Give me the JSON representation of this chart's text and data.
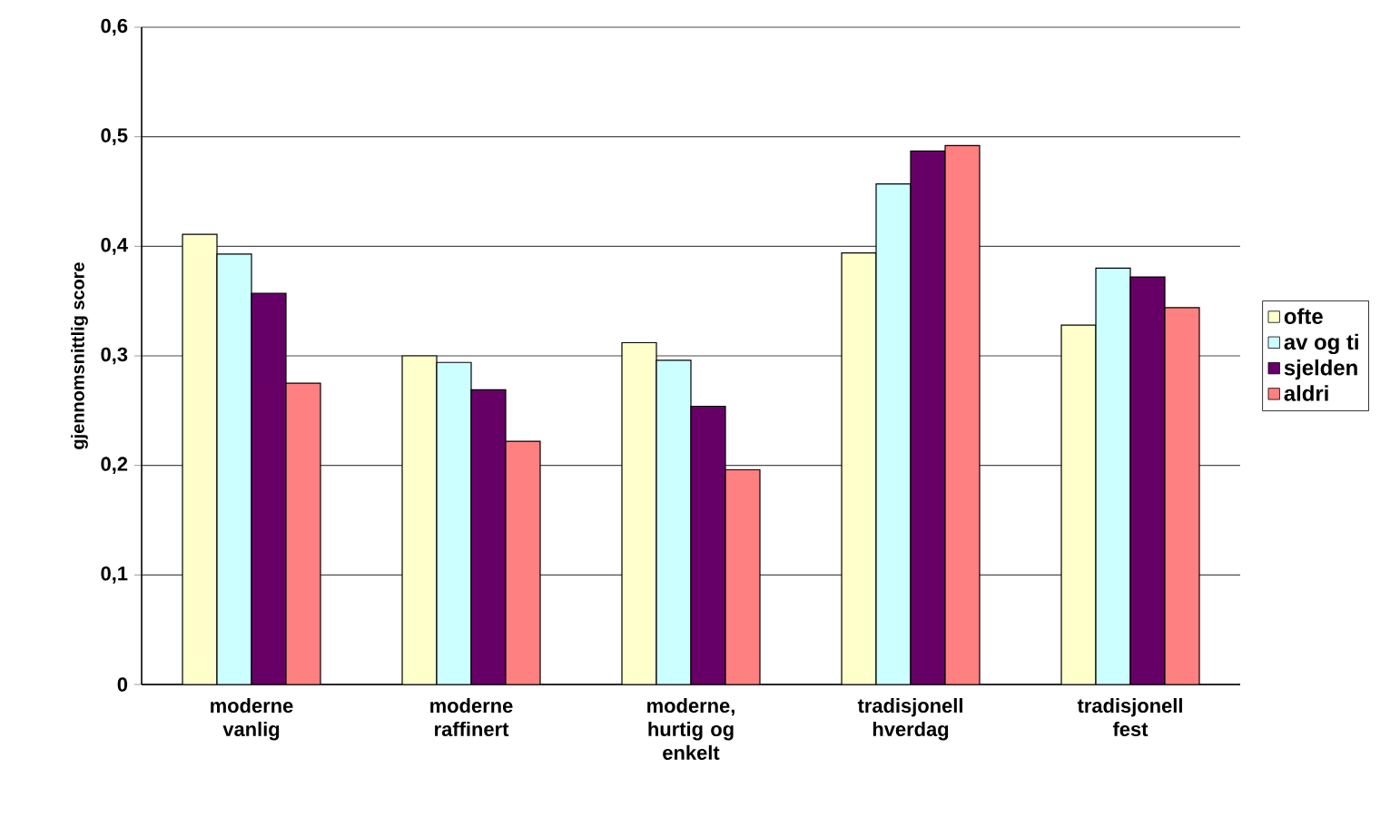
{
  "chart_data": {
    "type": "bar",
    "ylabel": "gjennomsnittlig score",
    "categories": [
      "moderne vanlig",
      "moderne raffinert",
      "moderne, hurtig og enkelt",
      "tradisjonell hverdag",
      "tradisjonell fest"
    ],
    "series": [
      {
        "name": "ofte",
        "color": "#ffffcc",
        "values": [
          0.411,
          0.3,
          0.312,
          0.394,
          0.328
        ]
      },
      {
        "name": "av og ti",
        "color": "#ccffff",
        "values": [
          0.393,
          0.294,
          0.296,
          0.457,
          0.38
        ]
      },
      {
        "name": "sjelden",
        "color": "#660066",
        "values": [
          0.357,
          0.269,
          0.254,
          0.487,
          0.372
        ]
      },
      {
        "name": "aldri",
        "color": "#ff8080",
        "values": [
          0.275,
          0.222,
          0.196,
          0.492,
          0.344
        ]
      }
    ],
    "ylim": [
      0,
      0.6
    ],
    "yticks": [
      {
        "value": 0,
        "label": "0"
      },
      {
        "value": 0.1,
        "label": "0,1"
      },
      {
        "value": 0.2,
        "label": "0,2"
      },
      {
        "value": 0.3,
        "label": "0,3"
      },
      {
        "value": 0.4,
        "label": "0,4"
      },
      {
        "value": 0.5,
        "label": "0,5"
      },
      {
        "value": 0.6,
        "label": "0,6"
      }
    ],
    "grid": "y",
    "legend": "right"
  }
}
